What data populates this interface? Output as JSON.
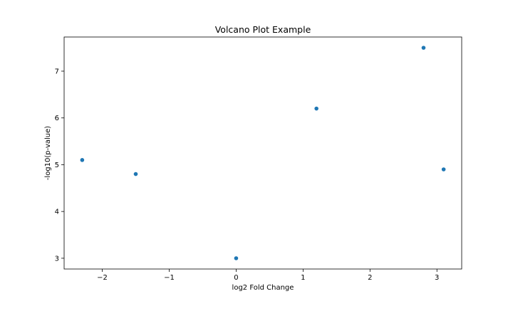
{
  "chart_data": {
    "type": "scatter",
    "title": "Volcano Plot Example",
    "xlabel": "log2 Fold Change",
    "ylabel": "-log10(p-value)",
    "x": [
      -2.3,
      -1.5,
      0.0,
      1.2,
      2.8,
      3.1
    ],
    "y": [
      5.1,
      4.8,
      3.0,
      6.2,
      7.5,
      4.9
    ],
    "xlim": [
      -2.57,
      3.37
    ],
    "ylim": [
      2.77,
      7.73
    ],
    "xticks": [
      -2,
      -1,
      0,
      1,
      2,
      3
    ],
    "xtick_labels": [
      "−2",
      "−1",
      "0",
      "1",
      "2",
      "3"
    ],
    "yticks": [
      3,
      4,
      5,
      6,
      7
    ],
    "ytick_labels": [
      "3",
      "4",
      "5",
      "6",
      "7"
    ],
    "grid": false,
    "marker_color": "#1f77b4"
  }
}
